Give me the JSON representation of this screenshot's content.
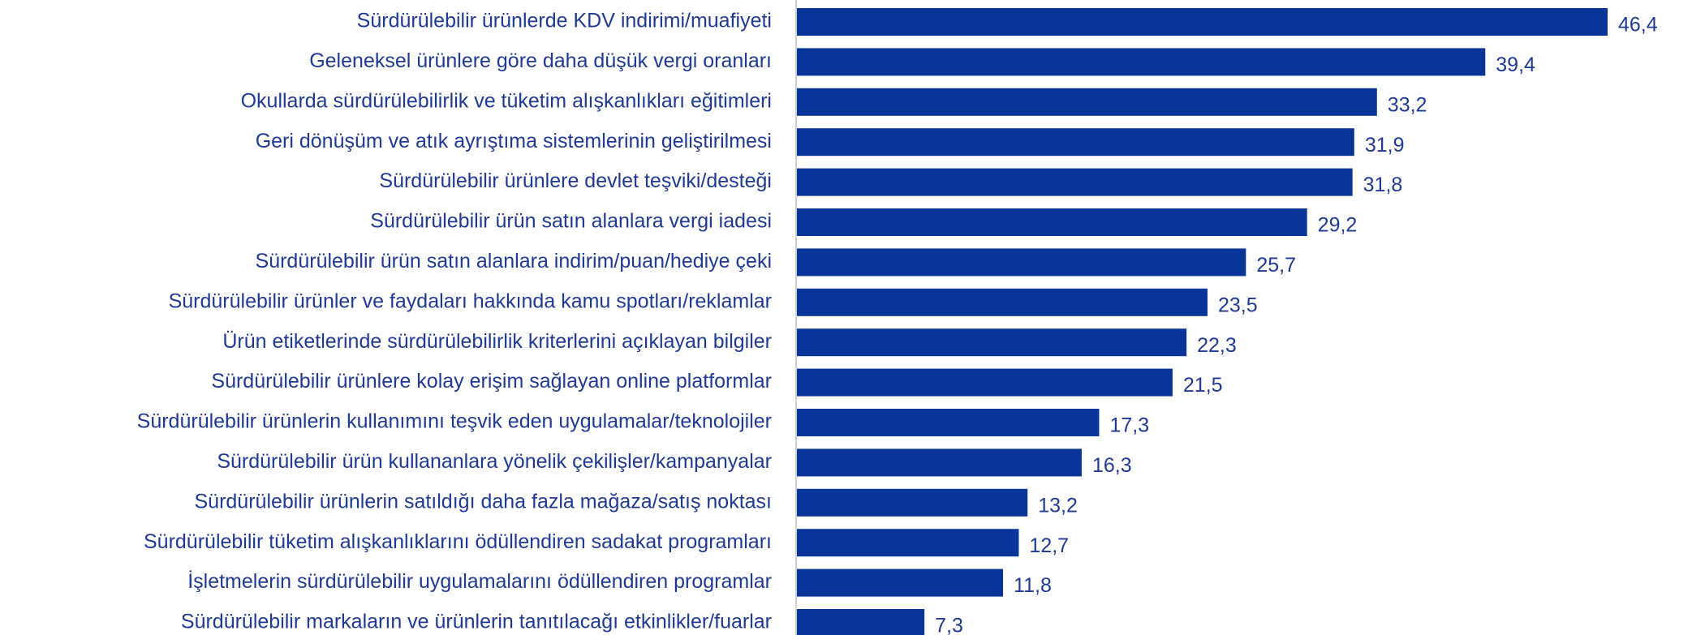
{
  "chart_data": {
    "type": "barh",
    "categories": [
      "Sürdürülebilir ürünlerde KDV indirimi/muafiyeti",
      "Geleneksel ürünlere göre daha düşük vergi oranları",
      "Okullarda sürdürülebilirlik ve tüketim alışkanlıkları eğitimleri",
      "Geri dönüşüm ve atık ayrıştıma sistemlerinin geliştirilmesi",
      "Sürdürülebilir ürünlere devlet teşviki/desteği",
      "Sürdürülebilir ürün satın alanlara vergi iadesi",
      "Sürdürülebilir ürün satın alanlara indirim/puan/hediye çeki",
      "Sürdürülebilir ürünler ve faydaları hakkında kamu spotları/reklamlar",
      "Ürün etiketlerinde sürdürülebilirlik kriterlerini açıklayan bilgiler",
      "Sürdürülebilir ürünlere kolay erişim sağlayan online platformlar",
      "Sürdürülebilir ürünlerin kullanımını teşvik eden uygulamalar/teknolojiler",
      "Sürdürülebilir ürün kullananlara yönelik çekilişler/kampanyalar",
      "Sürdürülebilir ürünlerin satıldığı daha fazla mağaza/satış noktası",
      "Sürdürülebilir tüketim alışkanlıklarını ödüllendiren sadakat programları",
      "İşletmelerin sürdürülebilir uygulamalarını ödüllendiren programlar",
      "Sürdürülebilir markaların ve ürünlerin tanıtılacağı etkinlikler/fuarlar"
    ],
    "values": [
      46.4,
      39.4,
      33.2,
      31.9,
      31.8,
      29.2,
      25.7,
      23.5,
      22.3,
      21.5,
      17.3,
      16.3,
      13.2,
      12.7,
      11.8,
      7.3
    ],
    "value_labels": [
      "46,4",
      "39,4",
      "33,2",
      "31,9",
      "31,8",
      "29,2",
      "25,7",
      "23,5",
      "22,3",
      "21,5",
      "17,3",
      "16,3",
      "13,2",
      "12,7",
      "11,8",
      "7,3"
    ],
    "color": "#0a3598"
  }
}
